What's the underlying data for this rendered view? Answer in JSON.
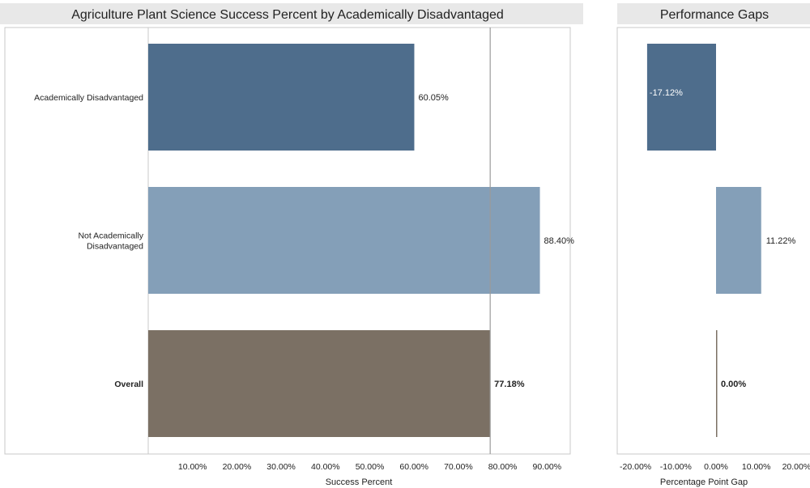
{
  "colors": {
    "academically_disadvantaged": "#4e6d8c",
    "not_academically_disadvantaged": "#849fb8",
    "overall": "#7b7064",
    "title_band": "#e8e8e8",
    "panel_border": "#c8c8c8",
    "reference_line": "#9a9a9a",
    "text": "#222222"
  },
  "chart_data": [
    {
      "type": "bar",
      "orientation": "horizontal",
      "title": "Agriculture Plant Science Success Percent by Academically Disadvantaged",
      "xlabel": "Success Percent",
      "ylabel": "",
      "categories": [
        "Academically Disadvantaged",
        "Not Academically Disadvantaged",
        "Overall"
      ],
      "category_label_lines": [
        [
          "Academically Disadvantaged"
        ],
        [
          "Not Academically",
          "Disadvantaged"
        ],
        [
          "Overall"
        ]
      ],
      "values": [
        60.05,
        88.4,
        77.18
      ],
      "value_labels": [
        "60.05%",
        "88.40%",
        "77.18%"
      ],
      "bold_categories": [
        "Overall"
      ],
      "xlim": [
        0,
        100
      ],
      "xticks": [
        10,
        20,
        30,
        40,
        50,
        60,
        70,
        80,
        90
      ],
      "xtick_labels": [
        "10.00%",
        "20.00%",
        "30.00%",
        "40.00%",
        "50.00%",
        "60.00%",
        "70.00%",
        "80.00%",
        "90.00%"
      ],
      "reference_line": 77.18,
      "grid": false,
      "legend": "none"
    },
    {
      "type": "bar",
      "orientation": "horizontal",
      "title": "Performance Gaps",
      "xlabel": "Percentage Point Gap",
      "ylabel": "",
      "categories": [
        "Academically Disadvantaged",
        "Not Academically Disadvantaged",
        "Overall"
      ],
      "values": [
        -17.12,
        11.22,
        0.0
      ],
      "value_labels": [
        "-17.12%",
        "11.22%",
        "0.00%"
      ],
      "bold_categories": [
        "Overall"
      ],
      "xlim": [
        -25,
        25
      ],
      "xticks": [
        -20,
        -10,
        0,
        10,
        20
      ],
      "xtick_labels": [
        "-20.00%",
        "-10.00%",
        "0.00%",
        "10.00%",
        "20.00%"
      ],
      "grid": false,
      "legend": "none"
    }
  ]
}
